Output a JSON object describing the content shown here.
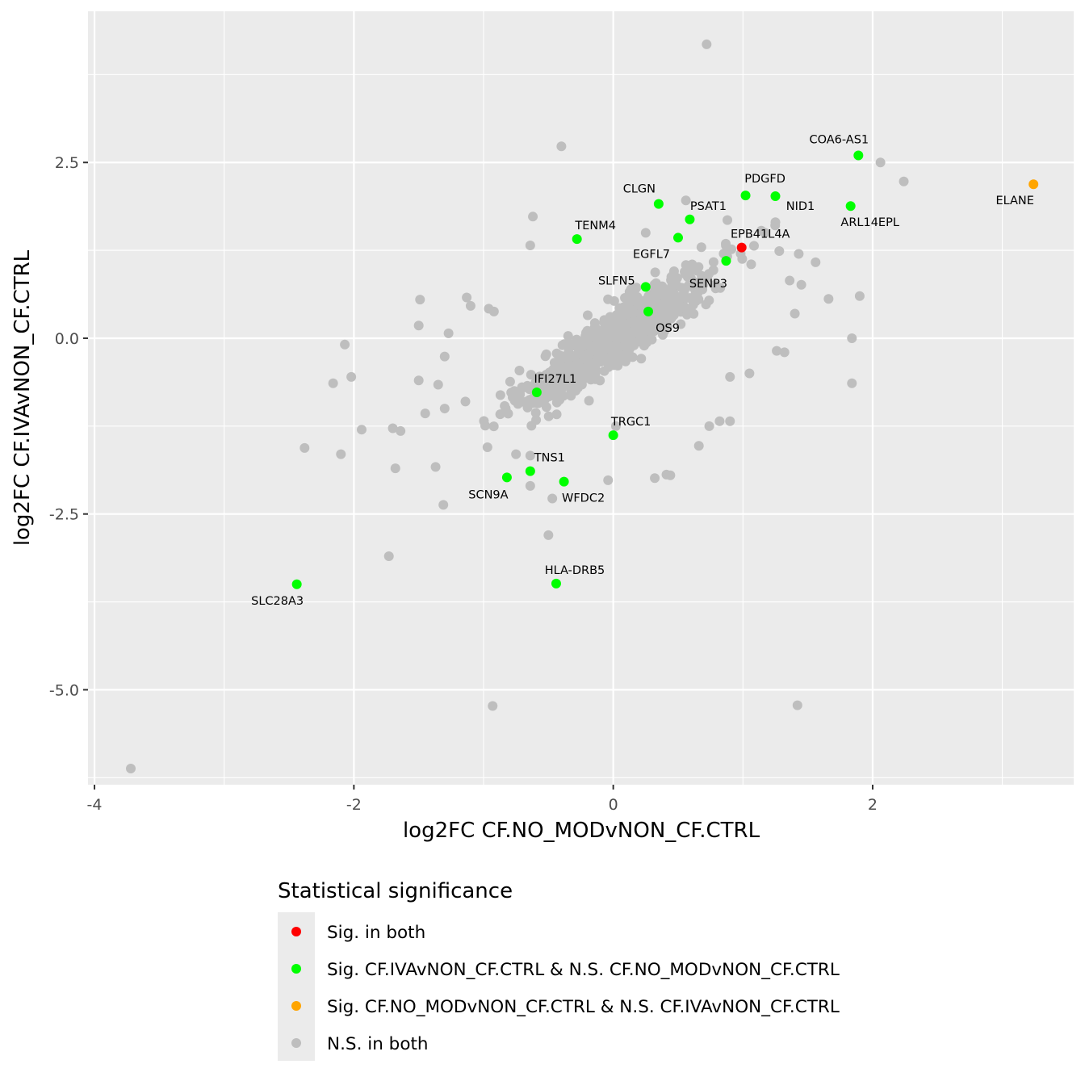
{
  "chart_data": {
    "type": "scatter",
    "xlabel": "log2FC CF.NO_MODvNON_CF.CTRL",
    "ylabel": "log2FC CF.IVAvNON_CF.CTRL",
    "xlim": [
      -4.05,
      3.55
    ],
    "ylim": [
      -6.35,
      4.65
    ],
    "x_ticks": [
      -4,
      -2,
      0,
      2
    ],
    "x_tick_labels": [
      "-4",
      "-2",
      "0",
      "2"
    ],
    "y_ticks": [
      -5,
      -2.5,
      0,
      2.5
    ],
    "y_tick_labels": [
      "-5.0",
      "-2.5",
      "0.0",
      "2.5"
    ],
    "grid": true,
    "legend": {
      "title": "Statistical significance",
      "position": "bottom",
      "entries": [
        {
          "key": "both",
          "label": "Sig. in both",
          "color": "#ff0000"
        },
        {
          "key": "iva_only",
          "label": "Sig. CF.IVAvNON_CF.CTRL & N.S. CF.NO_MODvNON_CF.CTRL",
          "color": "#00ff00"
        },
        {
          "key": "nomod_only",
          "label": "Sig. CF.NO_MODvNON_CF.CTRL & N.S. CF.IVAvNON_CF.CTRL",
          "color": "#ffa500"
        },
        {
          "key": "ns",
          "label": "N.S. in both",
          "color": "#bebebe"
        }
      ]
    },
    "series": [
      {
        "name": "Sig. in both",
        "color": "#ff0000",
        "points": [
          {
            "x": 0.99,
            "y": 1.29,
            "label": "EPB41L4A"
          }
        ]
      },
      {
        "name": "Sig. CF.IVAvNON_CF.CTRL & N.S. CF.NO_MODvNON_CF.CTRL",
        "color": "#00ff00",
        "points": [
          {
            "x": 1.89,
            "y": 2.6,
            "label": "COA6-AS1"
          },
          {
            "x": 1.02,
            "y": 2.03,
            "label": "PDGFD"
          },
          {
            "x": 1.25,
            "y": 2.02,
            "label": "NID1"
          },
          {
            "x": 0.35,
            "y": 1.91,
            "label": "CLGN"
          },
          {
            "x": 0.59,
            "y": 1.69,
            "label": "PSAT1"
          },
          {
            "x": 1.83,
            "y": 1.88,
            "label": "ARL14EPL"
          },
          {
            "x": -0.28,
            "y": 1.41,
            "label": "TENM4"
          },
          {
            "x": 0.5,
            "y": 1.43,
            "label": "EGFL7"
          },
          {
            "x": 0.87,
            "y": 1.1,
            "label": "SENP3"
          },
          {
            "x": 0.25,
            "y": 0.73,
            "label": "SLFN5"
          },
          {
            "x": 0.27,
            "y": 0.38,
            "label": "OS9"
          },
          {
            "x": -0.59,
            "y": -0.77,
            "label": "IFI27L1"
          },
          {
            "x": 0.0,
            "y": -1.38,
            "label": "TRGC1"
          },
          {
            "x": -0.64,
            "y": -1.89,
            "label": "TNS1"
          },
          {
            "x": -0.82,
            "y": -1.98,
            "label": "SCN9A"
          },
          {
            "x": -0.38,
            "y": -2.04,
            "label": "WFDC2"
          },
          {
            "x": -0.44,
            "y": -3.49,
            "label": "HLA-DRB5"
          },
          {
            "x": -2.44,
            "y": -3.5,
            "label": "SLC28A3"
          }
        ]
      },
      {
        "name": "Sig. CF.NO_MODvNON_CF.CTRL & N.S. CF.IVAvNON_CF.CTRL",
        "color": "#ffa500",
        "points": [
          {
            "x": 3.24,
            "y": 2.19,
            "label": "ELANE"
          }
        ]
      },
      {
        "name": "N.S. in both",
        "color": "#bebebe",
        "cloud": {
          "center_x": 0.05,
          "center_y": 0.05,
          "n": 900,
          "approximate": true
        },
        "points": [
          {
            "x": 0.72,
            "y": 4.18
          },
          {
            "x": -0.4,
            "y": 2.73
          },
          {
            "x": 2.06,
            "y": 2.5
          },
          {
            "x": 2.24,
            "y": 2.23
          },
          {
            "x": 0.56,
            "y": 1.96
          },
          {
            "x": -0.62,
            "y": 1.73
          },
          {
            "x": 1.25,
            "y": 1.65
          },
          {
            "x": 0.88,
            "y": 1.68
          },
          {
            "x": 1.17,
            "y": 1.5
          },
          {
            "x": -0.64,
            "y": 1.32
          },
          {
            "x": 1.28,
            "y": 1.24
          },
          {
            "x": 1.43,
            "y": 1.2
          },
          {
            "x": 1.56,
            "y": 1.08
          },
          {
            "x": 1.36,
            "y": 0.82
          },
          {
            "x": 1.45,
            "y": 0.76
          },
          {
            "x": 1.9,
            "y": 0.6
          },
          {
            "x": 1.66,
            "y": 0.56
          },
          {
            "x": 1.84,
            "y": 0.0
          },
          {
            "x": 1.84,
            "y": -0.64
          },
          {
            "x": 1.4,
            "y": 0.35
          },
          {
            "x": 1.32,
            "y": -0.2
          },
          {
            "x": 1.26,
            "y": -0.18
          },
          {
            "x": 1.05,
            "y": -0.5
          },
          {
            "x": 0.9,
            "y": -0.55
          },
          {
            "x": 0.82,
            "y": -1.18
          },
          {
            "x": 0.9,
            "y": -1.18
          },
          {
            "x": 0.74,
            "y": -1.25
          },
          {
            "x": 0.66,
            "y": -1.53
          },
          {
            "x": 0.41,
            "y": -1.94
          },
          {
            "x": 0.32,
            "y": -1.99
          },
          {
            "x": -0.04,
            "y": -2.02
          },
          {
            "x": -0.47,
            "y": -2.28
          },
          {
            "x": -0.5,
            "y": -2.8
          },
          {
            "x": -0.64,
            "y": -2.1
          },
          {
            "x": -0.64,
            "y": -1.67
          },
          {
            "x": -0.75,
            "y": -1.65
          },
          {
            "x": -0.97,
            "y": -1.55
          },
          {
            "x": -1.31,
            "y": -2.37
          },
          {
            "x": -1.37,
            "y": -1.83
          },
          {
            "x": -1.68,
            "y": -1.85
          },
          {
            "x": -1.7,
            "y": -1.28
          },
          {
            "x": -1.64,
            "y": -1.32
          },
          {
            "x": -1.73,
            "y": -3.1
          },
          {
            "x": -1.94,
            "y": -1.3
          },
          {
            "x": -2.1,
            "y": -1.65
          },
          {
            "x": -2.38,
            "y": -1.56
          },
          {
            "x": -2.02,
            "y": -0.55
          },
          {
            "x": -2.16,
            "y": -0.64
          },
          {
            "x": -2.07,
            "y": -0.09
          },
          {
            "x": -1.5,
            "y": 0.18
          },
          {
            "x": -1.49,
            "y": 0.55
          },
          {
            "x": -1.27,
            "y": 0.07
          },
          {
            "x": -1.13,
            "y": 0.58
          },
          {
            "x": -1.1,
            "y": 0.46
          },
          {
            "x": -1.3,
            "y": -0.26
          },
          {
            "x": -1.35,
            "y": -0.66
          },
          {
            "x": -1.5,
            "y": -0.6
          },
          {
            "x": -1.45,
            "y": -1.07
          },
          {
            "x": -1.3,
            "y": -1.0
          },
          {
            "x": -1.14,
            "y": -0.9
          },
          {
            "x": -0.92,
            "y": 0.38
          },
          {
            "x": -0.96,
            "y": 0.42
          },
          {
            "x": -3.72,
            "y": -6.12
          },
          {
            "x": -0.93,
            "y": -5.23
          },
          {
            "x": 1.42,
            "y": -5.22
          },
          {
            "x": 0.44,
            "y": -1.95
          },
          {
            "x": 0.02,
            "y": -1.25
          },
          {
            "x": 0.25,
            "y": 1.5
          }
        ]
      }
    ]
  }
}
